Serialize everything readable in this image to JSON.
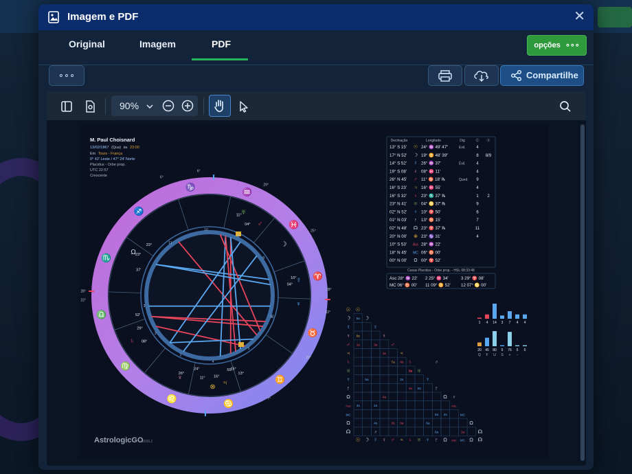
{
  "modal": {
    "title": "Imagem e PDF",
    "close": "✕",
    "tabs": [
      "Original",
      "Imagem",
      "PDF"
    ],
    "active_tab": "PDF",
    "options_label": "opções",
    "options_dots": "∘∘∘",
    "more_label": "∘∘∘",
    "share_label": "Compartilhe"
  },
  "viewer": {
    "zoom": "90%"
  },
  "chart": {
    "name": "M. Paul Choisnard",
    "date": "13/02/1867",
    "weekday": "(Qua)",
    "time_prefix": "às",
    "time": "23:00",
    "place_prefix": "Em",
    "place": "Tours - França",
    "coords": "0° 42' Leste / 47° 24' Norte",
    "system": "Placidus - Orbe prop.",
    "utc": "UTC 22:57",
    "moon": "Crescente",
    "brand": "AstrologicGO",
    "version": "2026.2"
  },
  "table": {
    "headers": [
      "Declinação",
      "Longitude",
      "Dig",
      "Ⓒ",
      "ⓓ"
    ],
    "rows": [
      {
        "dec": "13° S 15'",
        "sym": "☉",
        "lon": "24° ♒ 49' 47\"",
        "dig": "Exil.",
        "c": "4",
        "d": ""
      },
      {
        "dec": "17° N 52'",
        "sym": "☽",
        "lon": "19° ♊ 48' 39\"",
        "dig": "",
        "c": "8",
        "d": "8/9"
      },
      {
        "dec": "14° S 52'",
        "sym": "☿",
        "lon": "26° ♒ 37'",
        "dig": "Exil.",
        "c": "4",
        "d": ""
      },
      {
        "dec": "19° S 08'",
        "sym": "♀",
        "lon": "08° ♓ 11'",
        "dig": "",
        "c": "4",
        "d": ""
      },
      {
        "dec": "26° N 45'",
        "sym": "♂",
        "lon": "11° ♉ 18' ℞",
        "dig": "Qued.",
        "c": "9",
        "d": ""
      },
      {
        "dec": "16° S 23'",
        "sym": "♃",
        "lon": "16° ♓ 55'",
        "dig": "",
        "c": "4",
        "d": ""
      },
      {
        "dec": "16° S 32'",
        "sym": "♄",
        "lon": "23° ♏ 37' ℞",
        "dig": "",
        "c": "1",
        "d": "2"
      },
      {
        "dec": "23° N 41'",
        "sym": "♅",
        "lon": "04° ♋ 37' ℞",
        "dig": "",
        "c": "9",
        "d": ""
      },
      {
        "dec": "02° N 52'",
        "sym": "♆",
        "lon": "10° ♈ 50'",
        "dig": "",
        "c": "6",
        "d": ""
      },
      {
        "dec": "01° N 03'",
        "sym": "♇",
        "lon": "13° ♉ 15'",
        "dig": "",
        "c": "7",
        "d": ""
      },
      {
        "dec": "02° N 48'",
        "sym": "☊",
        "lon": "23° ♈ 37' ℞",
        "dig": "",
        "c": "11",
        "d": ""
      },
      {
        "dec": "20° N 00'",
        "sym": "⊗",
        "lon": "23° ♑ 31'",
        "dig": "",
        "c": "4",
        "d": ""
      },
      {
        "dec": "10° S 53'",
        "sym": "Asc",
        "lon": "28° ♒ 22'",
        "dig": "",
        "c": "",
        "d": ""
      },
      {
        "dec": "18° N 45'",
        "sym": "MC",
        "lon": "06° ♉ 00'",
        "dig": "",
        "c": "",
        "d": ""
      },
      {
        "dec": "00° N 00'",
        "sym": "Ω",
        "lon": "00° ♈ 52'",
        "dig": "",
        "c": "",
        "d": ""
      }
    ],
    "houses_title": "Casas Placidus - Orbe prop. - HSL 08:33:48",
    "houses_row1": [
      "Asc 28° ♒ 22'",
      "2  25° ♓ 34'",
      "3  29° ♈ 08'"
    ],
    "houses_row2": [
      "MC 06° ♉ 00'",
      "11 09° ♊ 52'",
      "12 07° ♋ 00'"
    ]
  },
  "distribution": {
    "top_labels": [
      "1",
      "4",
      "14",
      "3",
      "7",
      "4",
      "4"
    ],
    "top_values": [
      1,
      4,
      14,
      3,
      7,
      4,
      4
    ],
    "bottom_values": [
      20,
      45,
      80,
      5,
      76,
      5,
      5
    ],
    "bottom_labels": [
      "20",
      "45",
      "80",
      "5",
      "76",
      "5",
      "5"
    ],
    "bottom_letters": [
      "Q",
      "F",
      "U",
      "S",
      "+",
      "−",
      ""
    ]
  },
  "wheel": {
    "houses": [
      "1",
      "2",
      "3",
      "4",
      "5",
      "6",
      "7",
      "8",
      "9",
      "10",
      "11",
      "12"
    ],
    "degree_labels": [
      "6°",
      "29°",
      "25°",
      "28°",
      "22°",
      "25°",
      "7°",
      "28°",
      "22°",
      "6°"
    ],
    "planet_labels": [
      "11°",
      "04°",
      "23°",
      "10°",
      "04°",
      "13°",
      "15°",
      "29°",
      "52'",
      "08°",
      "11°",
      "16°",
      "55'",
      "24°",
      "26°",
      "23°",
      "37'"
    ]
  },
  "aspect_grid": {
    "cells": [
      "5a",
      "8s",
      "1s",
      "3s",
      "3s",
      "4s",
      "7a",
      "3s",
      "0a",
      "5a",
      "2s",
      "4s",
      "0s",
      "4a",
      "4s",
      "2s",
      "6a",
      "2s",
      "4s",
      "3s",
      "0a",
      "6a",
      "6s",
      "2a",
      "//",
      "//",
      "//"
    ]
  },
  "colors": {
    "title_bar": "#0b2d6b",
    "accent_green": "#27b35a",
    "ring_pink": "#c56bd9",
    "ring_blue": "#8b8ef2",
    "aspect_red": "#e8455a",
    "aspect_blue": "#5aa8f0",
    "gold": "#e0b23c"
  }
}
